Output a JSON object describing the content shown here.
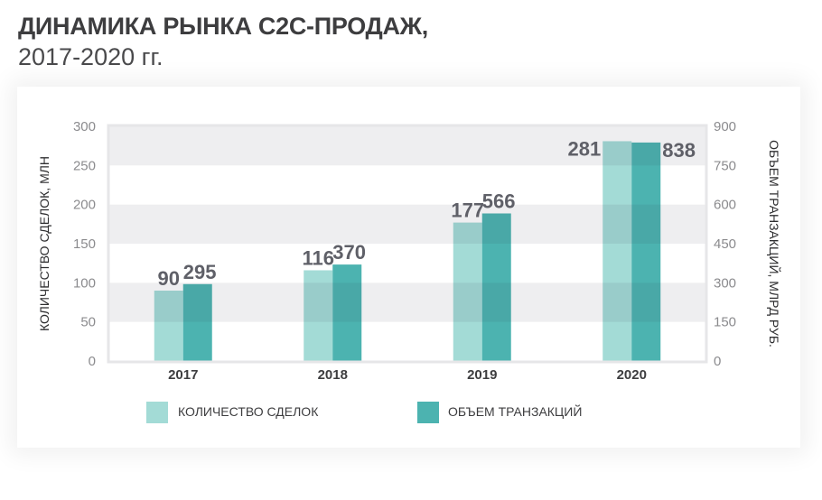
{
  "header": {
    "title": "ДИНАМИКА РЫНКА C2C-ПРОДАЖ,",
    "subtitle": "2017-2020 гг."
  },
  "chart_data": {
    "type": "bar",
    "categories": [
      "2017",
      "2018",
      "2019",
      "2020"
    ],
    "series": [
      {
        "name": "КОЛИЧЕСТВО СДЕЛОК",
        "values": [
          90,
          116,
          177,
          281
        ],
        "axis": "left",
        "color": "#a3dbd6"
      },
      {
        "name": "ОБЪЕМ ТРАНЗАКЦИЙ",
        "values": [
          295,
          370,
          566,
          838
        ],
        "axis": "right",
        "color": "#4cb3b0"
      }
    ],
    "ylabel": "КОЛИЧЕСТВО СДЕЛОК, МЛН",
    "ylabel_right": "ОБЪЕМ ТРАНЗАКЦИЙ, МЛРД РУБ.",
    "ylim": [
      0,
      300
    ],
    "ylim_right": [
      0,
      900
    ],
    "yticks": [
      "0",
      "50",
      "100",
      "150",
      "200",
      "250",
      "300"
    ],
    "yticks_right": [
      "0",
      "150",
      "300",
      "450",
      "600",
      "750",
      "900"
    ],
    "grid": "alternating bands",
    "legend": "bottom"
  }
}
